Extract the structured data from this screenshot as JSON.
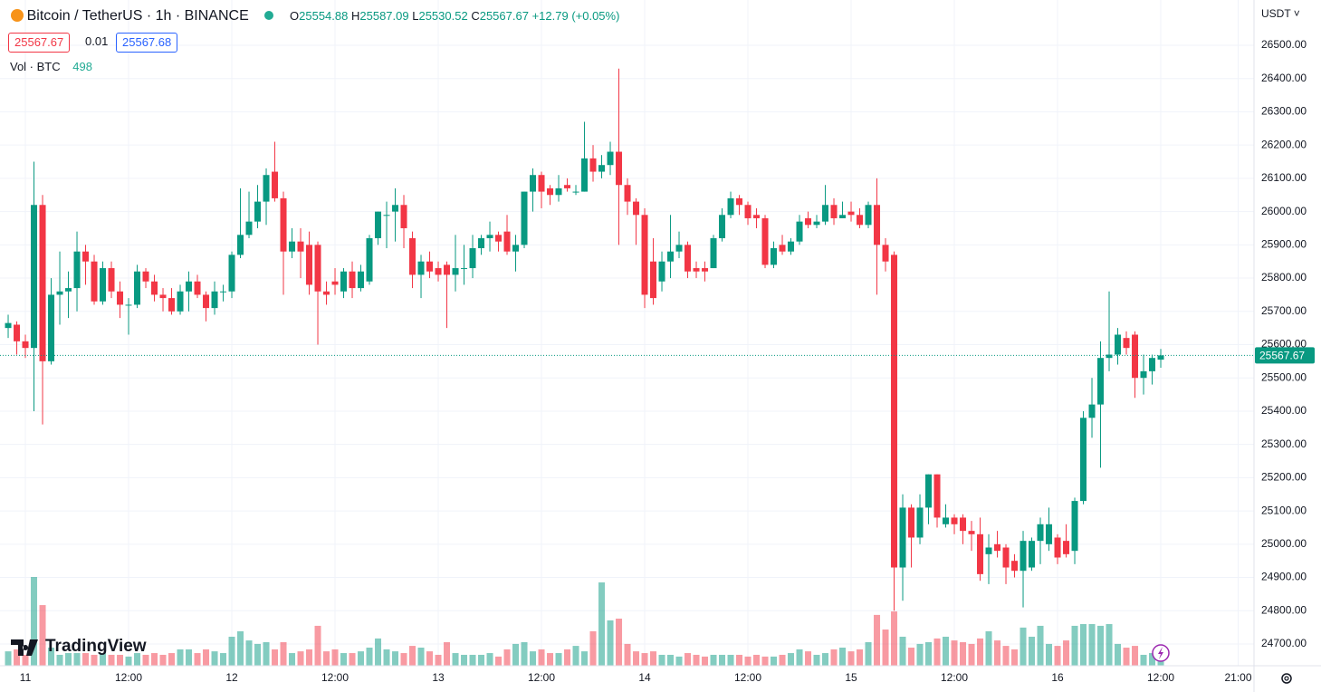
{
  "chart_data": {
    "type": "candlestick",
    "title": "Bitcoin / TetherUS · 1h · BINANCE",
    "ohlc_labels": {
      "open": "O",
      "high": "H",
      "low": "L",
      "close": "C"
    },
    "change": "+12.79 (+0.05%)",
    "quote": {
      "bid": "25567.67",
      "spread": "0.01",
      "ask": "25567.68"
    },
    "volume_label": "Vol · BTC",
    "currency": "USDT",
    "watermark": "TradingView",
    "up_color": "#089981",
    "down_color": "#f23645",
    "grid": true,
    "x": [
      -2,
      -1,
      0,
      1,
      2,
      3,
      4,
      5,
      6,
      7,
      8,
      9,
      10,
      11,
      12,
      13,
      14,
      15,
      16,
      17,
      18,
      19,
      20,
      21,
      22,
      23,
      24,
      25,
      26,
      27,
      28,
      29,
      30,
      31,
      32,
      33,
      34,
      35,
      36,
      37,
      38,
      39,
      40,
      41,
      42,
      43,
      44,
      45,
      46,
      47,
      48,
      49,
      50,
      51,
      52,
      53,
      54,
      55,
      56,
      57,
      58,
      59,
      60,
      61,
      62,
      63,
      64,
      65,
      66,
      67,
      68,
      69,
      70,
      71,
      72,
      73,
      74,
      75,
      76,
      77,
      78,
      79,
      80,
      81,
      82,
      83,
      84,
      85,
      86,
      87,
      88,
      89,
      90,
      91,
      92,
      93,
      94,
      95,
      96,
      97,
      98,
      99,
      100,
      101,
      102,
      103,
      104,
      105,
      106,
      107,
      108,
      109,
      110,
      111,
      112,
      113,
      114,
      115,
      116,
      117,
      118,
      119,
      120,
      121,
      122,
      123,
      124,
      125,
      126,
      127,
      128,
      129,
      130,
      131,
      132
    ],
    "series": {
      "open": [
        25650,
        25660,
        25610,
        25590,
        26020,
        25550,
        25750,
        25760,
        25770,
        25880,
        25850,
        25730,
        25830,
        25760,
        25720,
        25720,
        25820,
        25790,
        25750,
        25740,
        25700,
        25760,
        25790,
        25750,
        25710,
        25760,
        25760,
        25870,
        25930,
        25970,
        26030,
        26120,
        26040,
        25880,
        25910,
        25900,
        25900,
        25760,
        25790,
        25760,
        25820,
        25770,
        25790,
        25920,
        25990,
        26000,
        26020,
        25920,
        25810,
        25850,
        25830,
        25840,
        25810,
        25830,
        25830,
        25890,
        25920,
        25930,
        25940,
        25880,
        25900,
        26060,
        26110,
        26070,
        26050,
        26080,
        26060,
        26060,
        26160,
        26120,
        26140,
        26180,
        26080,
        26030,
        25990,
        25850,
        25790,
        25850,
        25880,
        25900,
        25830,
        25830,
        25830,
        25920,
        25990,
        26040,
        26020,
        25990,
        25980,
        25840,
        25900,
        25880,
        25910,
        25980,
        25960,
        25970,
        26020,
        25980,
        26000,
        25990,
        25960,
        26020,
        25900,
        25870,
        24930,
        25110,
        25020,
        25110,
        25210,
        25060,
        25080,
        25080,
        25040,
        25030,
        24970,
        25000,
        24990,
        24950,
        24920,
        24930,
        25010,
        25000,
        25020,
        25010,
        24980,
        25130,
        25380,
        25420,
        25560,
        25570,
        25620,
        25630,
        25500,
        25520,
        25554.88
      ],
      "high": [
        25690,
        25670,
        25630,
        26150,
        26050,
        25800,
        25880,
        25820,
        25940,
        25900,
        25870,
        25850,
        25850,
        25790,
        25740,
        25840,
        25830,
        25810,
        25770,
        25770,
        25780,
        25820,
        25810,
        25760,
        25790,
        25780,
        25880,
        26070,
        26060,
        26080,
        26130,
        26210,
        26060,
        25950,
        25950,
        25940,
        25910,
        25790,
        25830,
        25830,
        25850,
        25840,
        25930,
        26000,
        26030,
        26070,
        26050,
        25940,
        25870,
        25880,
        25850,
        25850,
        25930,
        25900,
        25930,
        25930,
        25970,
        25940,
        25990,
        25930,
        26060,
        26130,
        26120,
        26080,
        26110,
        26100,
        26080,
        26270,
        26200,
        26170,
        26210,
        26430,
        26100,
        26040,
        26010,
        25920,
        25880,
        25990,
        25940,
        25910,
        25850,
        25850,
        25930,
        26010,
        26060,
        26050,
        26030,
        26010,
        25990,
        25910,
        25930,
        25920,
        25990,
        26000,
        25990,
        26080,
        26040,
        26030,
        26030,
        26010,
        26030,
        26100,
        25920,
        25880,
        25150,
        25120,
        25150,
        25210,
        25210,
        25120,
        25090,
        25090,
        25070,
        25080,
        25030,
        25040,
        25000,
        24970,
        25040,
        25020,
        25080,
        25110,
        25030,
        25060,
        25140,
        25400,
        25500,
        25610,
        25760,
        25650,
        25640,
        25640,
        25570,
        25570,
        25587.09
      ],
      "low": [
        25620,
        25570,
        25560,
        25400,
        25360,
        25540,
        25660,
        25680,
        25700,
        25780,
        25720,
        25720,
        25740,
        25680,
        25630,
        25710,
        25770,
        25730,
        25700,
        25690,
        25690,
        25700,
        25740,
        25670,
        25690,
        25730,
        25740,
        25860,
        25920,
        25950,
        25960,
        26030,
        25750,
        25860,
        25800,
        25750,
        25600,
        25720,
        25750,
        25740,
        25740,
        25760,
        25780,
        25900,
        25890,
        25910,
        25890,
        25770,
        25740,
        25800,
        25790,
        25650,
        25760,
        25780,
        25800,
        25870,
        25880,
        25880,
        25870,
        25820,
        25890,
        26000,
        26010,
        26020,
        26030,
        26060,
        26050,
        26060,
        26090,
        26100,
        26110,
        25900,
        25990,
        25900,
        25710,
        25720,
        25760,
        25800,
        25860,
        25800,
        25800,
        25790,
        25830,
        25910,
        25980,
        25990,
        25960,
        25950,
        25830,
        25830,
        25870,
        25870,
        25900,
        25950,
        25950,
        25960,
        25960,
        25980,
        25970,
        25950,
        25950,
        25750,
        25820,
        24800,
        24830,
        24930,
        25000,
        25060,
        25050,
        25050,
        25030,
        25000,
        24980,
        24890,
        24880,
        24960,
        24880,
        24900,
        24810,
        24920,
        24940,
        24980,
        24940,
        24960,
        24940,
        25120,
        25320,
        25230,
        25520,
        25540,
        25570,
        25440,
        25450,
        25480,
        25530.52
      ],
      "close": [
        25665,
        25610,
        25590,
        26020,
        25550,
        25750,
        25760,
        25770,
        25880,
        25850,
        25730,
        25830,
        25760,
        25720,
        25720,
        25820,
        25790,
        25750,
        25740,
        25700,
        25760,
        25790,
        25750,
        25710,
        25760,
        25760,
        25870,
        25930,
        25970,
        26030,
        26110,
        26040,
        25880,
        25910,
        25880,
        25780,
        25760,
        25750,
        25780,
        25820,
        25770,
        25820,
        25920,
        26000,
        25990,
        26020,
        25950,
        25810,
        25850,
        25820,
        25810,
        25810,
        25830,
        25830,
        25890,
        25920,
        25930,
        25910,
        25880,
        25900,
        26060,
        26110,
        26060,
        26050,
        26070,
        26070,
        26060,
        26160,
        26120,
        26140,
        26180,
        26080,
        26030,
        25990,
        25750,
        25740,
        25850,
        25880,
        25900,
        25820,
        25820,
        25820,
        25920,
        25990,
        26040,
        26020,
        25980,
        25980,
        25840,
        25890,
        25880,
        25910,
        25970,
        25960,
        25970,
        26020,
        25980,
        25990,
        25990,
        25960,
        26020,
        25900,
        25850,
        24930,
        25110,
        25020,
        25110,
        25210,
        25080,
        25080,
        25060,
        25040,
        25030,
        24910,
        24990,
        24980,
        24930,
        24920,
        25010,
        25010,
        25060,
        25060,
        24960,
        24970,
        25130,
        25380,
        25420,
        25560,
        25570,
        25630,
        25590,
        25500,
        25520,
        25560,
        25567.67
      ],
      "volume": [
        660,
        750,
        500,
        4070,
        2780,
        830,
        500,
        580,
        580,
        580,
        500,
        580,
        500,
        500,
        420,
        580,
        500,
        580,
        500,
        580,
        750,
        750,
        580,
        750,
        660,
        580,
        1330,
        1580,
        1160,
        1000,
        1080,
        750,
        1080,
        580,
        660,
        750,
        1830,
        660,
        750,
        580,
        580,
        660,
        830,
        1250,
        750,
        660,
        580,
        910,
        830,
        660,
        500,
        1080,
        580,
        500,
        500,
        500,
        580,
        420,
        750,
        1000,
        1080,
        660,
        750,
        580,
        580,
        750,
        910,
        660,
        1580,
        3820,
        2080,
        2160,
        1000,
        660,
        580,
        660,
        500,
        500,
        420,
        580,
        500,
        420,
        500,
        500,
        500,
        500,
        420,
        500,
        420,
        420,
        500,
        580,
        750,
        660,
        500,
        580,
        750,
        830,
        660,
        750,
        1080,
        2330,
        1660,
        2490,
        1330,
        830,
        1000,
        1080,
        1250,
        1330,
        1160,
        1080,
        1000,
        1250,
        1580,
        1160,
        910,
        750,
        1750,
        1330,
        1830,
        1000,
        910,
        1160,
        1830,
        1910,
        1910,
        1830,
        1910,
        1000,
        830,
        910,
        500,
        580,
        498
      ]
    },
    "xlim": [
      -2.95,
      142.84
    ],
    "xticks": [
      {
        "value": 0,
        "label": "11"
      },
      {
        "value": 12,
        "label": "12:00"
      },
      {
        "value": 24,
        "label": "12"
      },
      {
        "value": 36,
        "label": "12:00"
      },
      {
        "value": 48,
        "label": "13"
      },
      {
        "value": 60,
        "label": "12:00"
      },
      {
        "value": 72,
        "label": "14"
      },
      {
        "value": 84,
        "label": "12:00"
      },
      {
        "value": 96,
        "label": "15"
      },
      {
        "value": 108,
        "label": "12:00"
      },
      {
        "value": 120,
        "label": "16"
      },
      {
        "value": 132,
        "label": "12:00"
      },
      {
        "value": 141,
        "label": "21:00"
      }
    ],
    "ylim": [
      24634.6,
      26636.2
    ],
    "yticks": [
      {
        "value": 24700,
        "label": "24700.00"
      },
      {
        "value": 24800,
        "label": "24800.00"
      },
      {
        "value": 24900,
        "label": "24900.00"
      },
      {
        "value": 25000,
        "label": "25000.00"
      },
      {
        "value": 25100,
        "label": "25100.00"
      },
      {
        "value": 25200,
        "label": "25200.00"
      },
      {
        "value": 25300,
        "label": "25300.00"
      },
      {
        "value": 25400,
        "label": "25400.00"
      },
      {
        "value": 25500,
        "label": "25500.00"
      },
      {
        "value": 25600,
        "label": "25600.00"
      },
      {
        "value": 25700,
        "label": "25700.00"
      },
      {
        "value": 25800,
        "label": "25800.00"
      },
      {
        "value": 25900,
        "label": "25900.00"
      },
      {
        "value": 26000,
        "label": "26000.00"
      },
      {
        "value": 26100,
        "label": "26100.00"
      },
      {
        "value": 26200,
        "label": "26200.00"
      },
      {
        "value": 26300,
        "label": "26300.00"
      },
      {
        "value": 26400,
        "label": "26400.00"
      },
      {
        "value": 26500,
        "label": "26500.00"
      }
    ]
  }
}
